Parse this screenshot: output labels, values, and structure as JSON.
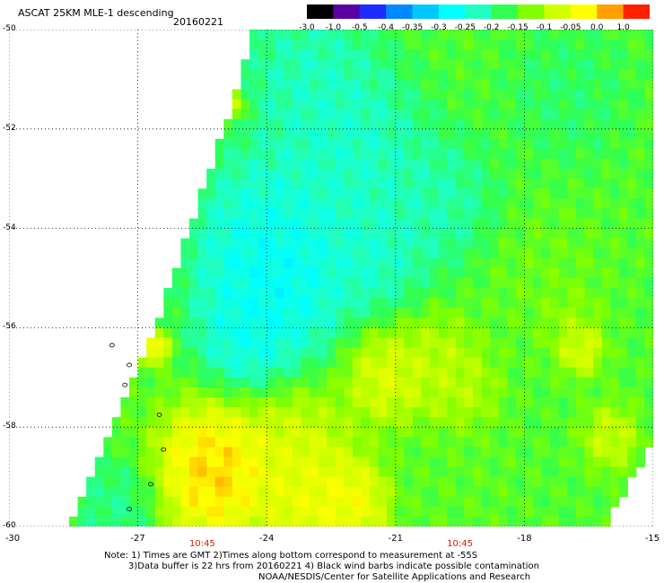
{
  "header": {
    "title": "ASCAT 25KM MLE-1 descending",
    "date": "20160221"
  },
  "colorbar": {
    "labels": [
      "-3.0",
      "-1.0",
      "-0.5",
      "-0.4",
      "-0.35",
      "-0.3",
      "-0.25",
      "-0.2",
      "-0.15",
      "-0.1",
      "-0.05",
      "0.0",
      "1.0"
    ],
    "colors": [
      "#000000",
      "#5a00a0",
      "#1e2cff",
      "#0088ff",
      "#00c8ff",
      "#00ffff",
      "#20ffc0",
      "#30ff50",
      "#80ff00",
      "#d0ff00",
      "#ffff00",
      "#ffa000",
      "#ff2000"
    ]
  },
  "chart_data": {
    "type": "heatmap",
    "xlim": [
      -30,
      -15
    ],
    "ylim": [
      -60,
      -50
    ],
    "x_ticks": [
      -30,
      -27,
      -24,
      -21,
      -18,
      -15
    ],
    "y_ticks": [
      -50,
      -52,
      -54,
      -56,
      -58,
      -60
    ],
    "x_tick_labels": [
      "-30",
      "-27",
      "-24",
      "-21",
      "-18",
      "-15"
    ],
    "y_tick_labels": [
      "-50",
      "-52",
      "-54",
      "-56",
      "-58",
      "-60"
    ],
    "grid": true,
    "time_labels": [
      {
        "lon": -25.5,
        "text": "10:45"
      },
      {
        "lon": -19.5,
        "text": "10:45"
      }
    ],
    "swath_west_edge": [
      {
        "lat": -50.0,
        "lon": -24.4
      },
      {
        "lat": -51.0,
        "lon": -24.6
      },
      {
        "lat": -52.0,
        "lon": -25.0
      },
      {
        "lat": -53.0,
        "lon": -25.4
      },
      {
        "lat": -54.0,
        "lon": -25.8
      },
      {
        "lat": -55.0,
        "lon": -26.2
      },
      {
        "lat": -56.0,
        "lon": -26.6
      },
      {
        "lat": -57.0,
        "lon": -27.1
      },
      {
        "lat": -58.0,
        "lon": -27.6
      },
      {
        "lat": -59.0,
        "lon": -28.1
      },
      {
        "lat": -60.0,
        "lon": -28.6
      }
    ],
    "swath_east_edge": [
      {
        "lat": -50.0,
        "lon": -15.1
      },
      {
        "lat": -58.5,
        "lon": -15.1
      },
      {
        "lat": -59.2,
        "lon": -15.6
      },
      {
        "lat": -60.0,
        "lon": -16.1
      }
    ],
    "features": [
      {
        "lat": -58.9,
        "lon": -25.2,
        "value": 0.02,
        "r": 1.3
      },
      {
        "lat": -59.5,
        "lon": -23.0,
        "value": -0.04,
        "r": 1.0
      },
      {
        "lat": -59.5,
        "lon": -22.0,
        "value": -0.03,
        "r": 0.8
      },
      {
        "lat": -58.5,
        "lon": -23.3,
        "value": -0.07,
        "r": 1.2
      },
      {
        "lat": -57.0,
        "lon": -21.2,
        "value": -0.06,
        "r": 0.9
      },
      {
        "lat": -56.7,
        "lon": -20.0,
        "value": -0.1,
        "r": 0.9
      },
      {
        "lat": -56.4,
        "lon": -16.7,
        "value": -0.05,
        "r": 0.5
      },
      {
        "lat": -57.3,
        "lon": -19.5,
        "value": -0.1,
        "r": 0.8
      },
      {
        "lat": -58.2,
        "lon": -16.0,
        "value": -0.08,
        "r": 0.6
      },
      {
        "lat": -55.0,
        "lon": -23.8,
        "value": -0.33,
        "r": 1.6
      },
      {
        "lat": -54.0,
        "lon": -24.0,
        "value": -0.29,
        "r": 1.5
      },
      {
        "lat": -52.5,
        "lon": -22.0,
        "value": -0.28,
        "r": 1.6
      },
      {
        "lat": -51.0,
        "lon": -23.0,
        "value": -0.27,
        "r": 1.5
      },
      {
        "lat": -56.2,
        "lon": -24.5,
        "value": -0.3,
        "r": 1.0
      },
      {
        "lat": -53.5,
        "lon": -20.0,
        "value": -0.26,
        "r": 1.2
      },
      {
        "lat": -54.5,
        "lon": -21.5,
        "value": -0.28,
        "r": 1.1
      },
      {
        "lat": -51.3,
        "lon": -17.0,
        "value": -0.22,
        "r": 1.3
      },
      {
        "lat": -55.0,
        "lon": -17.5,
        "value": -0.16,
        "r": 1.3
      },
      {
        "lat": -55.8,
        "lon": -17.0,
        "value": -0.12,
        "r": 0.6
      },
      {
        "lat": -59.0,
        "lon": -19.5,
        "value": -0.17,
        "r": 1.2
      },
      {
        "lat": -59.6,
        "lon": -27.5,
        "value": -0.24,
        "r": 0.9
      },
      {
        "lat": -51.5,
        "lon": -24.8,
        "value": -0.05,
        "r": 0.3
      },
      {
        "lat": -56.4,
        "lon": -26.6,
        "value": 0.0,
        "r": 0.3
      }
    ],
    "background_value": -0.18,
    "islands": [
      {
        "lat": -56.35,
        "lon": -27.6
      },
      {
        "lat": -56.75,
        "lon": -27.2
      },
      {
        "lat": -57.15,
        "lon": -27.3
      },
      {
        "lat": -57.75,
        "lon": -26.5
      },
      {
        "lat": -58.45,
        "lon": -26.4
      },
      {
        "lat": -59.15,
        "lon": -26.7
      },
      {
        "lat": -59.65,
        "lon": -27.2
      }
    ]
  },
  "notes": {
    "line1": "Note: 1) Times are GMT 2)Times along bottom correspond to measurement at -55S",
    "line2": "3)Data buffer is 22 hrs from 20160221 4) Black wind barbs indicate possible contamination",
    "line3": "NOAA/NESDIS/Center for Satellite Applications and Research"
  }
}
